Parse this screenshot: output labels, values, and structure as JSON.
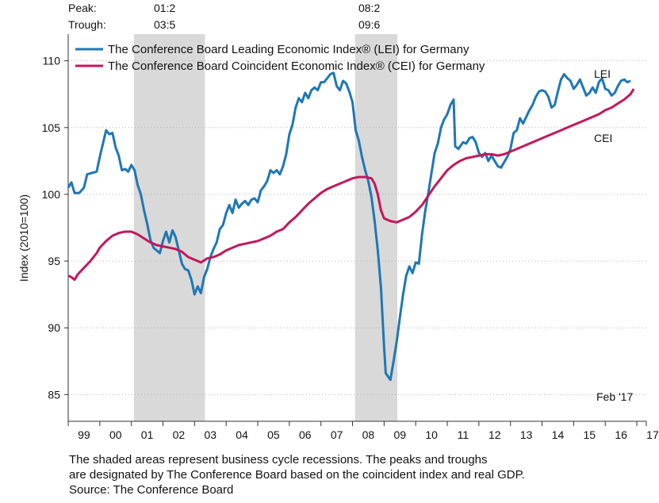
{
  "chart_data": {
    "type": "line",
    "ylabel": "Index (2010=100)",
    "ylim": [
      83,
      112
    ],
    "y_ticks": [
      85,
      90,
      95,
      100,
      105,
      110
    ],
    "x_range": [
      1999.0,
      2017.3
    ],
    "x_tick_labels": [
      "99",
      "00",
      "01",
      "02",
      "03",
      "04",
      "05",
      "06",
      "07",
      "08",
      "09",
      "10",
      "11",
      "12",
      "13",
      "14",
      "15",
      "16",
      "17"
    ],
    "grid": "horizontal-dotted",
    "legend_placement": "top-left",
    "peak_label": "Peak:",
    "trough_label": "Trough:",
    "recessions": [
      {
        "peak": "01:2",
        "trough": "03:5",
        "start": 2001.08,
        "end": 2003.33
      },
      {
        "peak": "08:2",
        "trough": "09:6",
        "start": 2008.08,
        "end": 2009.42
      }
    ],
    "date_note": "Feb '17",
    "series": [
      {
        "name": "The Conference Board Leading Economic Index® (LEI) for Germany",
        "end_label": "LEI",
        "color": "#1f77b4",
        "points": [
          [
            1999.0,
            100.5
          ],
          [
            1999.1,
            100.9
          ],
          [
            1999.2,
            100.1
          ],
          [
            1999.35,
            100.1
          ],
          [
            1999.5,
            100.5
          ],
          [
            1999.6,
            101.5
          ],
          [
            1999.75,
            101.6
          ],
          [
            1999.9,
            101.7
          ],
          [
            2000.0,
            102.8
          ],
          [
            2000.1,
            103.8
          ],
          [
            2000.2,
            104.8
          ],
          [
            2000.3,
            104.5
          ],
          [
            2000.4,
            104.6
          ],
          [
            2000.5,
            103.5
          ],
          [
            2000.6,
            102.9
          ],
          [
            2000.7,
            101.8
          ],
          [
            2000.8,
            101.9
          ],
          [
            2000.9,
            101.7
          ],
          [
            2001.0,
            102.2
          ],
          [
            2001.1,
            101.8
          ],
          [
            2001.2,
            100.7
          ],
          [
            2001.3,
            100.0
          ],
          [
            2001.4,
            98.8
          ],
          [
            2001.5,
            97.8
          ],
          [
            2001.6,
            96.6
          ],
          [
            2001.7,
            96.0
          ],
          [
            2001.8,
            95.8
          ],
          [
            2001.9,
            95.6
          ],
          [
            2002.0,
            96.5
          ],
          [
            2002.1,
            97.2
          ],
          [
            2002.2,
            96.4
          ],
          [
            2002.3,
            97.3
          ],
          [
            2002.4,
            96.8
          ],
          [
            2002.5,
            95.8
          ],
          [
            2002.6,
            94.8
          ],
          [
            2002.7,
            94.4
          ],
          [
            2002.8,
            94.3
          ],
          [
            2002.9,
            93.6
          ],
          [
            2003.0,
            92.5
          ],
          [
            2003.1,
            93.1
          ],
          [
            2003.2,
            92.6
          ],
          [
            2003.3,
            93.8
          ],
          [
            2003.4,
            94.4
          ],
          [
            2003.5,
            95.3
          ],
          [
            2003.6,
            95.9
          ],
          [
            2003.7,
            96.4
          ],
          [
            2003.8,
            97.4
          ],
          [
            2003.9,
            97.7
          ],
          [
            2004.0,
            98.6
          ],
          [
            2004.1,
            99.2
          ],
          [
            2004.2,
            98.6
          ],
          [
            2004.3,
            99.6
          ],
          [
            2004.4,
            99.0
          ],
          [
            2004.5,
            99.3
          ],
          [
            2004.6,
            99.5
          ],
          [
            2004.7,
            99.2
          ],
          [
            2004.8,
            99.6
          ],
          [
            2004.9,
            99.7
          ],
          [
            2005.0,
            99.4
          ],
          [
            2005.1,
            100.3
          ],
          [
            2005.2,
            100.6
          ],
          [
            2005.3,
            101.0
          ],
          [
            2005.4,
            101.8
          ],
          [
            2005.5,
            101.6
          ],
          [
            2005.6,
            101.8
          ],
          [
            2005.7,
            101.5
          ],
          [
            2005.8,
            102.1
          ],
          [
            2005.9,
            103.0
          ],
          [
            2006.0,
            104.5
          ],
          [
            2006.1,
            105.2
          ],
          [
            2006.2,
            106.5
          ],
          [
            2006.3,
            107.2
          ],
          [
            2006.4,
            106.9
          ],
          [
            2006.5,
            107.6
          ],
          [
            2006.6,
            107.2
          ],
          [
            2006.7,
            107.8
          ],
          [
            2006.8,
            108.0
          ],
          [
            2006.9,
            107.8
          ],
          [
            2007.0,
            108.4
          ],
          [
            2007.1,
            108.4
          ],
          [
            2007.2,
            108.7
          ],
          [
            2007.3,
            109.0
          ],
          [
            2007.4,
            109.1
          ],
          [
            2007.5,
            108.1
          ],
          [
            2007.6,
            107.8
          ],
          [
            2007.7,
            108.5
          ],
          [
            2007.8,
            108.3
          ],
          [
            2007.9,
            107.7
          ],
          [
            2008.0,
            106.9
          ],
          [
            2008.1,
            104.8
          ],
          [
            2008.2,
            104.0
          ],
          [
            2008.3,
            102.8
          ],
          [
            2008.4,
            101.8
          ],
          [
            2008.5,
            101.0
          ],
          [
            2008.6,
            99.8
          ],
          [
            2008.7,
            98.0
          ],
          [
            2008.8,
            95.8
          ],
          [
            2008.9,
            93.0
          ],
          [
            2009.0,
            88.5
          ],
          [
            2009.05,
            86.6
          ],
          [
            2009.2,
            86.1
          ],
          [
            2009.3,
            87.5
          ],
          [
            2009.4,
            89.0
          ],
          [
            2009.5,
            90.8
          ],
          [
            2009.6,
            92.5
          ],
          [
            2009.7,
            93.9
          ],
          [
            2009.8,
            94.6
          ],
          [
            2009.9,
            94.1
          ],
          [
            2010.0,
            94.9
          ],
          [
            2010.1,
            94.8
          ],
          [
            2010.2,
            97.0
          ],
          [
            2010.3,
            98.7
          ],
          [
            2010.4,
            100.1
          ],
          [
            2010.5,
            101.6
          ],
          [
            2010.6,
            103.1
          ],
          [
            2010.7,
            103.8
          ],
          [
            2010.8,
            105.0
          ],
          [
            2010.9,
            105.6
          ],
          [
            2011.0,
            106.0
          ],
          [
            2011.1,
            106.7
          ],
          [
            2011.2,
            107.1
          ],
          [
            2011.25,
            103.6
          ],
          [
            2011.35,
            103.4
          ],
          [
            2011.5,
            103.9
          ],
          [
            2011.6,
            103.8
          ],
          [
            2011.7,
            104.2
          ],
          [
            2011.8,
            104.3
          ],
          [
            2011.9,
            103.9
          ],
          [
            2012.0,
            103.1
          ],
          [
            2012.1,
            102.8
          ],
          [
            2012.2,
            103.1
          ],
          [
            2012.3,
            102.5
          ],
          [
            2012.4,
            102.9
          ],
          [
            2012.5,
            102.5
          ],
          [
            2012.6,
            102.1
          ],
          [
            2012.7,
            102.0
          ],
          [
            2012.8,
            102.4
          ],
          [
            2012.9,
            102.8
          ],
          [
            2013.0,
            103.4
          ],
          [
            2013.1,
            104.6
          ],
          [
            2013.2,
            104.8
          ],
          [
            2013.3,
            105.7
          ],
          [
            2013.4,
            105.3
          ],
          [
            2013.5,
            105.8
          ],
          [
            2013.6,
            106.3
          ],
          [
            2013.7,
            106.7
          ],
          [
            2013.8,
            107.3
          ],
          [
            2013.9,
            107.7
          ],
          [
            2014.0,
            107.8
          ],
          [
            2014.1,
            107.7
          ],
          [
            2014.2,
            107.3
          ],
          [
            2014.3,
            106.5
          ],
          [
            2014.4,
            106.7
          ],
          [
            2014.5,
            107.7
          ],
          [
            2014.6,
            108.6
          ],
          [
            2014.7,
            109.0
          ],
          [
            2014.8,
            108.7
          ],
          [
            2014.9,
            108.5
          ],
          [
            2015.0,
            107.9
          ],
          [
            2015.1,
            108.2
          ],
          [
            2015.2,
            108.6
          ],
          [
            2015.3,
            108.0
          ],
          [
            2015.4,
            107.4
          ],
          [
            2015.5,
            107.6
          ],
          [
            2015.6,
            108.0
          ],
          [
            2015.7,
            107.6
          ],
          [
            2015.8,
            108.4
          ],
          [
            2015.9,
            108.7
          ],
          [
            2016.0,
            107.9
          ],
          [
            2016.1,
            107.8
          ],
          [
            2016.2,
            107.4
          ],
          [
            2016.3,
            107.6
          ],
          [
            2016.4,
            108.1
          ],
          [
            2016.5,
            108.5
          ],
          [
            2016.6,
            108.6
          ],
          [
            2016.7,
            108.4
          ],
          [
            2016.8,
            108.5
          ]
        ]
      },
      {
        "name": "The Conference Board Coincident Economic Index® (CEI) for Germany",
        "end_label": "CEI",
        "color": "#c2185b",
        "points": [
          [
            1999.0,
            93.9
          ],
          [
            1999.1,
            93.8
          ],
          [
            1999.2,
            93.6
          ],
          [
            1999.3,
            94.0
          ],
          [
            1999.5,
            94.5
          ],
          [
            1999.7,
            95.0
          ],
          [
            1999.9,
            95.6
          ],
          [
            2000.0,
            96.0
          ],
          [
            2000.2,
            96.5
          ],
          [
            2000.4,
            96.9
          ],
          [
            2000.6,
            97.1
          ],
          [
            2000.8,
            97.2
          ],
          [
            2001.0,
            97.2
          ],
          [
            2001.2,
            97.0
          ],
          [
            2001.4,
            96.7
          ],
          [
            2001.6,
            96.4
          ],
          [
            2001.8,
            96.2
          ],
          [
            2002.0,
            96.1
          ],
          [
            2002.2,
            96.0
          ],
          [
            2002.4,
            95.9
          ],
          [
            2002.6,
            95.7
          ],
          [
            2002.8,
            95.3
          ],
          [
            2003.0,
            95.1
          ],
          [
            2003.2,
            94.9
          ],
          [
            2003.4,
            95.2
          ],
          [
            2003.6,
            95.3
          ],
          [
            2003.8,
            95.5
          ],
          [
            2004.0,
            95.8
          ],
          [
            2004.2,
            96.0
          ],
          [
            2004.4,
            96.2
          ],
          [
            2004.6,
            96.3
          ],
          [
            2004.8,
            96.4
          ],
          [
            2005.0,
            96.5
          ],
          [
            2005.2,
            96.7
          ],
          [
            2005.4,
            96.9
          ],
          [
            2005.6,
            97.2
          ],
          [
            2005.8,
            97.4
          ],
          [
            2006.0,
            97.9
          ],
          [
            2006.2,
            98.3
          ],
          [
            2006.4,
            98.8
          ],
          [
            2006.6,
            99.3
          ],
          [
            2006.8,
            99.7
          ],
          [
            2007.0,
            100.1
          ],
          [
            2007.2,
            100.4
          ],
          [
            2007.4,
            100.6
          ],
          [
            2007.6,
            100.8
          ],
          [
            2007.8,
            101.0
          ],
          [
            2008.0,
            101.2
          ],
          [
            2008.2,
            101.3
          ],
          [
            2008.4,
            101.3
          ],
          [
            2008.6,
            101.2
          ],
          [
            2008.7,
            100.8
          ],
          [
            2008.8,
            100.0
          ],
          [
            2008.9,
            98.8
          ],
          [
            2009.0,
            98.2
          ],
          [
            2009.2,
            98.0
          ],
          [
            2009.4,
            97.9
          ],
          [
            2009.6,
            98.1
          ],
          [
            2009.8,
            98.3
          ],
          [
            2010.0,
            98.7
          ],
          [
            2010.2,
            99.2
          ],
          [
            2010.4,
            99.9
          ],
          [
            2010.6,
            100.6
          ],
          [
            2010.8,
            101.2
          ],
          [
            2011.0,
            101.8
          ],
          [
            2011.2,
            102.2
          ],
          [
            2011.4,
            102.5
          ],
          [
            2011.6,
            102.7
          ],
          [
            2011.8,
            102.8
          ],
          [
            2012.0,
            102.9
          ],
          [
            2012.2,
            103.0
          ],
          [
            2012.4,
            103.0
          ],
          [
            2012.6,
            102.9
          ],
          [
            2012.8,
            103.0
          ],
          [
            2013.0,
            103.2
          ],
          [
            2013.2,
            103.4
          ],
          [
            2013.4,
            103.6
          ],
          [
            2013.6,
            103.8
          ],
          [
            2013.8,
            104.0
          ],
          [
            2014.0,
            104.2
          ],
          [
            2014.2,
            104.4
          ],
          [
            2014.4,
            104.6
          ],
          [
            2014.6,
            104.8
          ],
          [
            2014.8,
            105.0
          ],
          [
            2015.0,
            105.2
          ],
          [
            2015.2,
            105.4
          ],
          [
            2015.4,
            105.6
          ],
          [
            2015.6,
            105.8
          ],
          [
            2015.8,
            106.0
          ],
          [
            2016.0,
            106.3
          ],
          [
            2016.2,
            106.5
          ],
          [
            2016.4,
            106.8
          ],
          [
            2016.6,
            107.1
          ],
          [
            2016.8,
            107.5
          ],
          [
            2016.9,
            107.9
          ]
        ]
      }
    ]
  },
  "footer": {
    "line1": "The shaded areas represent business cycle recessions. The peaks and troughs",
    "line2": "are designated by The Conference Board based on the coincident index and real GDP.",
    "line3": "Source: The Conference Board"
  }
}
